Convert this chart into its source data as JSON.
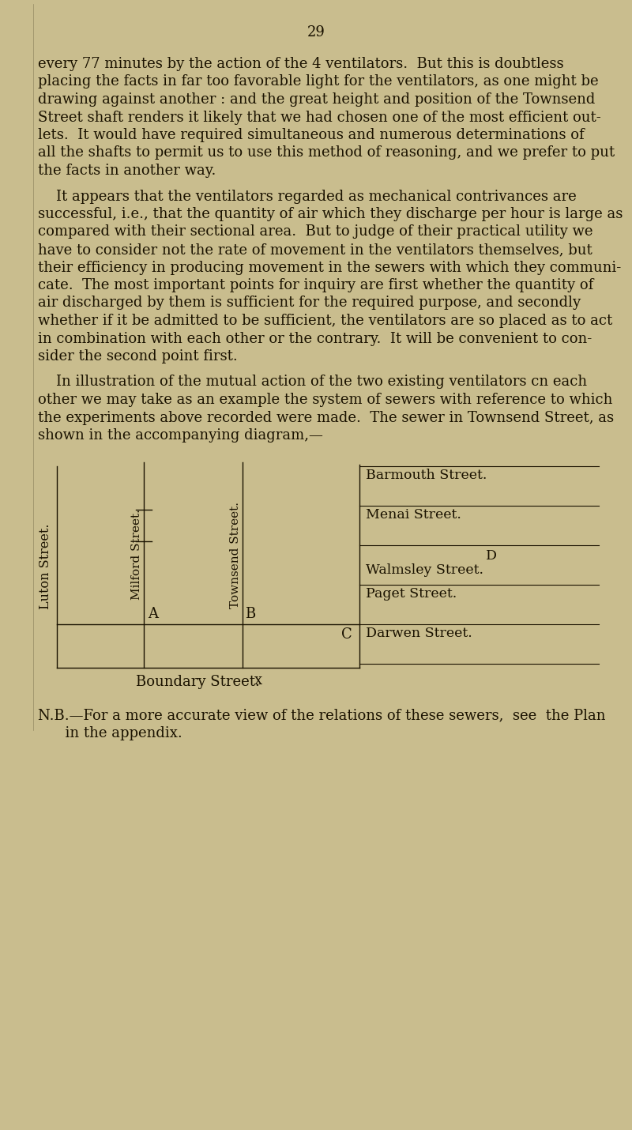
{
  "background_color": "#c9bd8e",
  "page_number": "29",
  "text_color": "#1a1200",
  "para1_lines": [
    "every 77 minutes by the action of the 4 ventilators.  But this is doubtless",
    "placing the facts in far too favorable light for the ventilators, as one might be",
    "drawing against another : and the great height and position of the Townsend",
    "Street shaft renders it likely that we had chosen one of the most efficient out-",
    "lets.  It would have required simultaneous and numerous determinations of",
    "all the shafts to permit us to use this method of reasoning, and we prefer to put",
    "the facts in another way."
  ],
  "para2_lines": [
    "    It appears that the ventilators regarded as mechanical contrivances are",
    "successful, i.e., that the quantity of air which they discharge per hour is large as",
    "compared with their sectional area.  But to judge of their practical utility we",
    "have to consider not the rate of movement in the ventilators themselves, but",
    "their efficiency in producing movement in the sewers with which they communi-",
    "cate.  The most important points for inquiry are first whether the quantity of",
    "air discharged by them is sufficient for the required purpose, and secondly",
    "whether if it be admitted to be sufficient, the ventilators are so placed as to act",
    "in combination with each other or the contrary.  It will be convenient to con-",
    "sider the second point first."
  ],
  "para3_lines": [
    "    In illustration of the mutual action of the two existing ventilators cn each",
    "other we may take as an example the system of sewers with reference to which",
    "the experiments above recorded were made.  The sewer in Townsend Street, as",
    "shown in the accompanying diagram,—"
  ],
  "right_labels": [
    "Barmouth Street.",
    "Menai Street.",
    "D",
    "Walmsley Street.",
    "Paget Street.",
    "Darwen Street."
  ],
  "diagram_labels": {
    "luton": "Luton Street.",
    "milford": "Milford Street.",
    "townsend": "Townsend Street.",
    "boundary": "Boundary Street.",
    "A": "A",
    "B": "B",
    "C": "C",
    "X": "x"
  },
  "nb_line1": "N.B.—For a more accurate view of the relations of these sewers,  see  the Plan",
  "nb_line2": "      in the appendix."
}
